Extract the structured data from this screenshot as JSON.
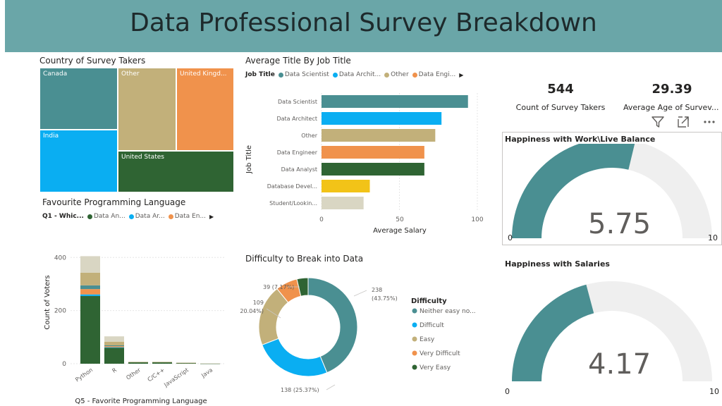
{
  "header": {
    "title": "Data Professional Survey Breakdown"
  },
  "country_treemap": {
    "title": "Country of Survey Takers",
    "tiles": [
      {
        "label": "Canada",
        "color": "#4a8f92"
      },
      {
        "label": "Other",
        "color": "#c2b07a"
      },
      {
        "label": "United Kingd...",
        "color": "#f0924c"
      },
      {
        "label": "India",
        "color": "#0aaef2"
      },
      {
        "label": "United States",
        "color": "#2f6433"
      }
    ]
  },
  "job_salary_chart": {
    "title": "Average Title By Job Title",
    "legend_title": "Job Title",
    "legend": [
      {
        "label": "Data Scientist",
        "color": "#4a8f92"
      },
      {
        "label": "Data Archit...",
        "color": "#0aaef2"
      },
      {
        "label": "Other",
        "color": "#c2b07a"
      },
      {
        "label": "Data Engi...",
        "color": "#f0924c"
      }
    ],
    "xlabel": "Average Salary",
    "ylabel": "Job Title",
    "ticks": [
      "0",
      "50",
      "100"
    ]
  },
  "language_chart": {
    "title": "Favourite Programming Language",
    "legend_title": "Q1 - Whic...",
    "legend": [
      {
        "label": "Data An...",
        "color": "#2f6433"
      },
      {
        "label": "Data Ar...",
        "color": "#0aaef2"
      },
      {
        "label": "Data En...",
        "color": "#f0924c"
      }
    ],
    "xlabel": "Q5 - Favorite Programming Language",
    "ylabel": "Count of Voters",
    "yticks": [
      "0",
      "200",
      "400"
    ]
  },
  "difficulty_chart": {
    "title": "Difficulty to Break into Data",
    "legend_title": "Difficulty"
  },
  "cards": {
    "count_value": "544",
    "count_label": "Count of Survey Takers",
    "age_value": "29.39",
    "age_label": "Average Age of Survev..."
  },
  "gauges": [
    {
      "title": "Happiness with Work\\Live Balance",
      "value": 5.75,
      "value_label": "5.75",
      "min_label": "0",
      "max_label": "10",
      "fill": "#4a8f92",
      "track": "#efefef"
    },
    {
      "title": "Happiness with Salaries",
      "value": 4.17,
      "value_label": "4.17",
      "min_label": "0",
      "max_label": "10",
      "fill": "#4a8f92",
      "track": "#efefef"
    }
  ],
  "icons": [
    "filter-icon",
    "focus-mode-icon",
    "more-options-icon"
  ],
  "chart_data": [
    {
      "type": "bar",
      "orientation": "horizontal",
      "title": "Average Title By Job Title",
      "categories": [
        "Data Scientist",
        "Data Architect",
        "Other",
        "Data Engineer",
        "Data Analyst",
        "Database Devel...",
        "Student/Lookin..."
      ],
      "values": [
        94,
        77,
        73,
        66,
        66,
        31,
        27
      ],
      "colors": [
        "#4a8f92",
        "#0aaef2",
        "#c2b07a",
        "#f0924c",
        "#2f6433",
        "#f2c318",
        "#d9d6c3"
      ],
      "xlabel": "Average Salary",
      "ylabel": "Job Title",
      "xlim": [
        0,
        100
      ]
    },
    {
      "type": "bar",
      "stacked": true,
      "title": "Favourite Programming Language",
      "categories": [
        "Python",
        "R",
        "Other",
        "C/C++",
        "JavaScript",
        "Java"
      ],
      "series": [
        {
          "name": "Data An...",
          "color": "#2f6433",
          "values": [
            255,
            60,
            6,
            6,
            3,
            1
          ]
        },
        {
          "name": "Data Ar...",
          "color": "#0aaef2",
          "values": [
            6,
            2,
            0,
            0,
            0,
            0
          ]
        },
        {
          "name": "Data En...",
          "color": "#f0924c",
          "values": [
            20,
            4,
            0,
            0,
            0,
            0
          ]
        },
        {
          "color": "#4a8f92",
          "values": [
            14,
            3,
            0,
            0,
            0,
            0
          ]
        },
        {
          "color": "#c2b07a",
          "values": [
            48,
            14,
            1,
            1,
            1,
            0
          ]
        },
        {
          "color": "#d9d6c3",
          "values": [
            62,
            20,
            1,
            1,
            1,
            1
          ]
        }
      ],
      "xlabel": "Q5 - Favorite Programming Language",
      "ylabel": "Count of Voters",
      "ylim": [
        0,
        430
      ]
    },
    {
      "type": "pie",
      "donut": true,
      "title": "Difficulty to Break into Data",
      "slices": [
        {
          "label": "Neither easy no...",
          "value": 238,
          "pct": "43.75%",
          "color": "#4a8f92"
        },
        {
          "label": "Difficult",
          "value": 138,
          "pct": "25.37%",
          "color": "#0aaef2"
        },
        {
          "label": "Easy",
          "value": 109,
          "pct": "20.04%",
          "color": "#c2b07a"
        },
        {
          "label": "Very Difficult",
          "value": 39,
          "pct": "7.17%",
          "color": "#f0924c"
        },
        {
          "label": "Very Easy",
          "value": 20,
          "pct": "",
          "color": "#2f6433"
        }
      ],
      "callouts": [
        "238",
        "(43.75%)",
        "138 (25.37%)",
        "109",
        "(20.04%)",
        "39 (7.17%)"
      ]
    }
  ]
}
